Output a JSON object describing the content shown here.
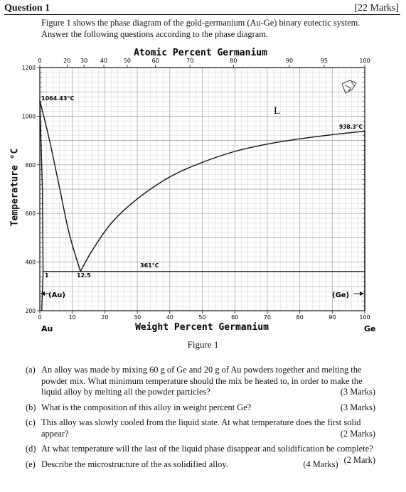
{
  "header": {
    "title": "Question 1",
    "marks": "[22 Marks]"
  },
  "intro": "Figure 1 shows the phase diagram of the gold-germanium (Au-Ge) binary eutectic system. Answer the following questions according to the phase diagram.",
  "figure": {
    "caption": "Figure 1",
    "top_axis_title": "Atomic Percent Germanium",
    "bottom_axis_title": "Weight Percent Germanium",
    "y_axis_title": "Temperature °C",
    "left_element": "Au",
    "right_element": "Ge",
    "labels": {
      "melt_au": "1064.43°C",
      "melt_ge": "938.3°C",
      "eutectic": "361°C",
      "liquid": "L",
      "au_phase": "(Au)",
      "ge_phase": "(Ge)",
      "au_solubility": "1",
      "eutectic_comp": "12.5"
    }
  },
  "chart_data": {
    "type": "line",
    "xlabel": "Weight Percent Germanium",
    "x2label": "Atomic Percent Germanium",
    "ylabel": "Temperature °C",
    "xlim": [
      0,
      100
    ],
    "ylim": [
      200,
      1200
    ],
    "x_ticks": [
      "0",
      "10",
      "20",
      "30",
      "40",
      "50",
      "60",
      "70",
      "80",
      "90",
      "100"
    ],
    "y_ticks": [
      "200",
      "400",
      "600",
      "800",
      "1000",
      "1200"
    ],
    "top_ticks": [
      {
        "label": "0",
        "wt": 0
      },
      {
        "label": "20",
        "wt": 8.4
      },
      {
        "label": "30",
        "wt": 13.6
      },
      {
        "label": "40",
        "wt": 19.7
      },
      {
        "label": "50",
        "wt": 26.9
      },
      {
        "label": "60",
        "wt": 35.6
      },
      {
        "label": "70",
        "wt": 46.2
      },
      {
        "label": "80",
        "wt": 59.6
      },
      {
        "label": "90",
        "wt": 76.8
      },
      {
        "label": "95",
        "wt": 87.5
      },
      {
        "label": "100",
        "wt": 100
      }
    ],
    "series": [
      {
        "values": [
          [
            0,
            1064.43
          ],
          [
            3,
            900
          ],
          [
            6,
            710
          ],
          [
            9,
            520
          ],
          [
            12.5,
            361
          ]
        ]
      },
      {
        "values": [
          [
            12.5,
            361
          ],
          [
            16,
            445
          ],
          [
            22,
            560
          ],
          [
            30,
            660
          ],
          [
            40,
            750
          ],
          [
            50,
            810
          ],
          [
            60,
            855
          ],
          [
            70,
            885
          ],
          [
            80,
            907
          ],
          [
            90,
            924
          ],
          [
            100,
            938.3
          ]
        ]
      },
      {
        "values": [
          [
            0,
            1064.43
          ],
          [
            0.8,
            700
          ],
          [
            1,
            361
          ]
        ]
      },
      {
        "values": [
          [
            1,
            361
          ],
          [
            100,
            361
          ]
        ]
      },
      {
        "values": [
          [
            1,
            361
          ],
          [
            0.6,
            200
          ]
        ]
      },
      {
        "values": [
          [
            100,
            938.3
          ],
          [
            100,
            200
          ]
        ]
      }
    ]
  },
  "questions": [
    {
      "label": "(a)",
      "text": "An alloy was made by mixing 60 g of Ge and 20 g of Au powders together and melting the powder mix. What minimum temperature should the mix be heated to, in order to make the liquid alloy by melting all the powder particles?",
      "marks": "(3 Marks)"
    },
    {
      "label": "(b)",
      "text": "What is the composition of this alloy in weight percent Ge?",
      "marks": "(3 Marks)"
    },
    {
      "label": "(c)",
      "text": "This alloy was slowly cooled from the liquid state. At what temperature does the first solid appear?",
      "marks": "(2 Marks)"
    },
    {
      "label": "(d)",
      "text": "At what temperature will the last of the liquid phase disappear and solidification be complete?",
      "marks": "(2 Mark)"
    },
    {
      "label": "(e)",
      "text": "Describe the microstructure of the as solidified alloy.",
      "marks": "(4 Marks)"
    }
  ]
}
